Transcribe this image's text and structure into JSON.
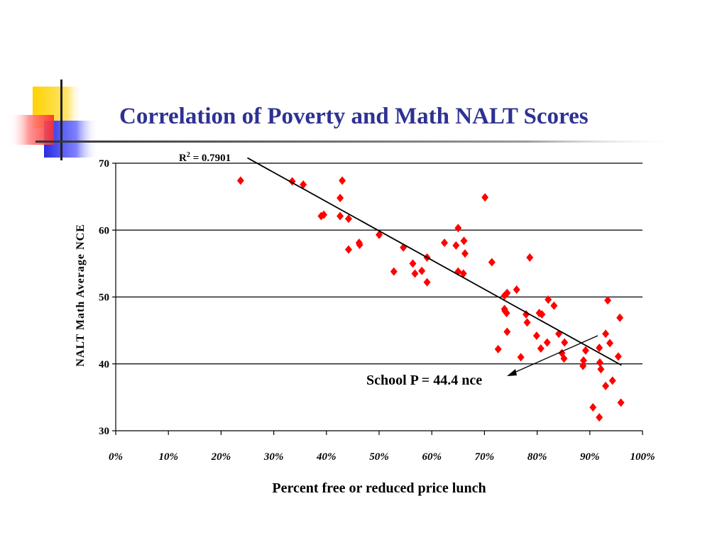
{
  "slide": {
    "title": "Correlation of Poverty and Math NALT Scores",
    "colors": {
      "title": "#2e3192",
      "deco_yellow": "#ffd200",
      "deco_red": "#ff3b3b",
      "deco_blue": "#2a2de0"
    }
  },
  "chart_data": {
    "type": "scatter",
    "xlabel": "Percent free or reduced price lunch",
    "ylabel": "NALT Math Average NCE",
    "xlim": [
      0,
      100
    ],
    "ylim": [
      30,
      70
    ],
    "x_ticks": [
      0,
      10,
      20,
      30,
      40,
      50,
      60,
      70,
      80,
      90,
      100
    ],
    "x_tick_labels": [
      "0%",
      "10%",
      "20%",
      "30%",
      "40%",
      "50%",
      "60%",
      "70%",
      "80%",
      "90%",
      "100%"
    ],
    "y_ticks": [
      30,
      40,
      50,
      60,
      70
    ],
    "y_tick_labels": [
      "30",
      "40",
      "50",
      "60",
      "70"
    ],
    "grid": "horizontal",
    "marker": "diamond",
    "marker_color": "#ff0000",
    "points": [
      [
        23.7,
        67.4
      ],
      [
        33.5,
        67.3
      ],
      [
        35.6,
        66.8
      ],
      [
        39.0,
        62.1
      ],
      [
        39.5,
        62.3
      ],
      [
        42.6,
        64.8
      ],
      [
        43.0,
        67.4
      ],
      [
        42.6,
        62.1
      ],
      [
        44.2,
        61.7
      ],
      [
        44.2,
        57.1
      ],
      [
        46.3,
        57.8
      ],
      [
        46.2,
        58.1
      ],
      [
        50.0,
        59.3
      ],
      [
        52.8,
        53.8
      ],
      [
        54.6,
        57.4
      ],
      [
        56.4,
        55.0
      ],
      [
        56.8,
        53.5
      ],
      [
        58.1,
        53.9
      ],
      [
        59.1,
        55.9
      ],
      [
        59.1,
        52.2
      ],
      [
        62.4,
        58.1
      ],
      [
        64.6,
        57.7
      ],
      [
        65.0,
        60.3
      ],
      [
        65.0,
        53.8
      ],
      [
        66.1,
        58.4
      ],
      [
        66.3,
        56.5
      ],
      [
        66.0,
        53.5
      ],
      [
        70.1,
        64.9
      ],
      [
        71.4,
        55.2
      ],
      [
        72.6,
        42.2
      ],
      [
        73.8,
        50.2
      ],
      [
        74.3,
        50.6
      ],
      [
        73.8,
        48.2
      ],
      [
        73.9,
        47.9
      ],
      [
        74.2,
        47.6
      ],
      [
        74.3,
        44.8
      ],
      [
        76.1,
        51.1
      ],
      [
        76.9,
        41.0
      ],
      [
        77.9,
        47.4
      ],
      [
        78.1,
        46.2
      ],
      [
        78.6,
        55.9
      ],
      [
        79.9,
        44.2
      ],
      [
        80.4,
        47.6
      ],
      [
        80.9,
        47.4
      ],
      [
        80.7,
        42.3
      ],
      [
        81.9,
        43.2
      ],
      [
        82.1,
        49.6
      ],
      [
        83.2,
        48.7
      ],
      [
        84.1,
        44.5
      ],
      [
        84.7,
        41.6
      ],
      [
        85.2,
        43.2
      ],
      [
        85.1,
        40.8
      ],
      [
        88.8,
        40.5
      ],
      [
        88.7,
        39.7
      ],
      [
        89.2,
        42.0
      ],
      [
        90.6,
        33.5
      ],
      [
        91.8,
        42.4
      ],
      [
        91.9,
        40.2
      ],
      [
        92.1,
        39.2
      ],
      [
        91.8,
        32.0
      ],
      [
        93.0,
        44.5
      ],
      [
        93.0,
        36.7
      ],
      [
        93.4,
        49.5
      ],
      [
        93.8,
        43.1
      ],
      [
        94.3,
        37.5
      ],
      [
        95.4,
        41.1
      ],
      [
        95.7,
        46.9
      ],
      [
        95.9,
        34.2
      ]
    ],
    "trendline": {
      "x": [
        25.0,
        96.0
      ],
      "y": [
        70.8,
        39.8
      ]
    },
    "annotations": {
      "r_squared": {
        "base": "R",
        "superscript": "2",
        "rest": " = 0.7901"
      },
      "school_label": "School P = 44.4 nce"
    }
  }
}
